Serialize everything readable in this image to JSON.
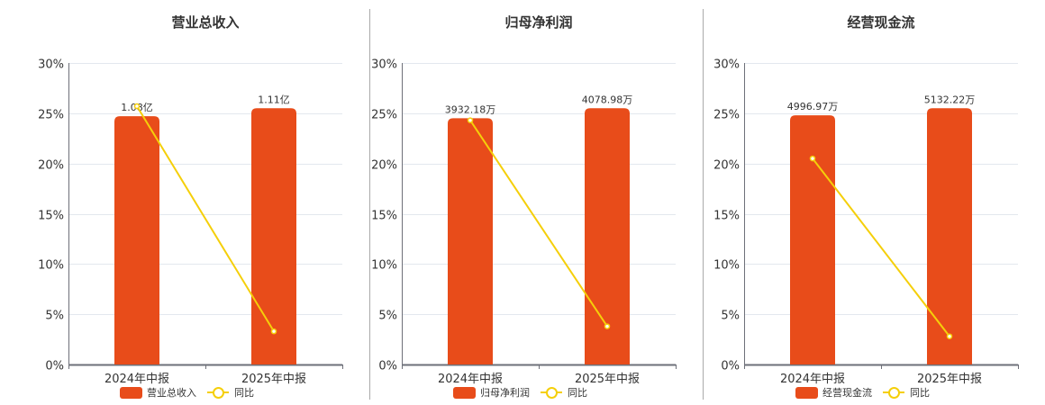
{
  "colors": {
    "bar": "#e84c1a",
    "line": "#f5cf0a",
    "grid": "#e3e8ee",
    "axis": "#6e7079",
    "divider": "#aaaaaa"
  },
  "legend": {
    "line_label": "同比"
  },
  "y_ticks": [
    "0%",
    "5%",
    "10%",
    "15%",
    "20%",
    "25%",
    "30%"
  ],
  "categories": [
    "2024年中报",
    "2025年中报"
  ],
  "chart_data": [
    {
      "type": "bar",
      "title": "营业总收入",
      "categories": [
        "2024年中报",
        "2025年中报"
      ],
      "series": [
        {
          "name": "营业总收入",
          "type": "bar",
          "values": [
            24.7,
            25.5
          ],
          "labels": [
            "1.08亿",
            "1.11亿"
          ]
        },
        {
          "name": "同比",
          "type": "line",
          "values": [
            25.7,
            3.3
          ]
        }
      ],
      "ylabel": "",
      "xlabel": "",
      "ylim": [
        0,
        30
      ],
      "yticks": [
        0,
        5,
        10,
        15,
        20,
        25,
        30
      ],
      "grid": true,
      "legend_position": "bottom"
    },
    {
      "type": "bar",
      "title": "归母净利润",
      "categories": [
        "2024年中报",
        "2025年中报"
      ],
      "series": [
        {
          "name": "归母净利润",
          "type": "bar",
          "values": [
            24.5,
            25.5
          ],
          "labels": [
            "3932.18万",
            "4078.98万"
          ]
        },
        {
          "name": "同比",
          "type": "line",
          "values": [
            24.3,
            3.8
          ]
        }
      ],
      "ylabel": "",
      "xlabel": "",
      "ylim": [
        0,
        30
      ],
      "yticks": [
        0,
        5,
        10,
        15,
        20,
        25,
        30
      ],
      "grid": true,
      "legend_position": "bottom"
    },
    {
      "type": "bar",
      "title": "经营现金流",
      "categories": [
        "2024年中报",
        "2025年中报"
      ],
      "series": [
        {
          "name": "经营现金流",
          "type": "bar",
          "values": [
            24.8,
            25.5
          ],
          "labels": [
            "4996.97万",
            "5132.22万"
          ]
        },
        {
          "name": "同比",
          "type": "line",
          "values": [
            20.5,
            2.8
          ]
        }
      ],
      "ylabel": "",
      "xlabel": "",
      "ylim": [
        0,
        30
      ],
      "yticks": [
        0,
        5,
        10,
        15,
        20,
        25,
        30
      ],
      "grid": true,
      "legend_position": "bottom"
    }
  ]
}
